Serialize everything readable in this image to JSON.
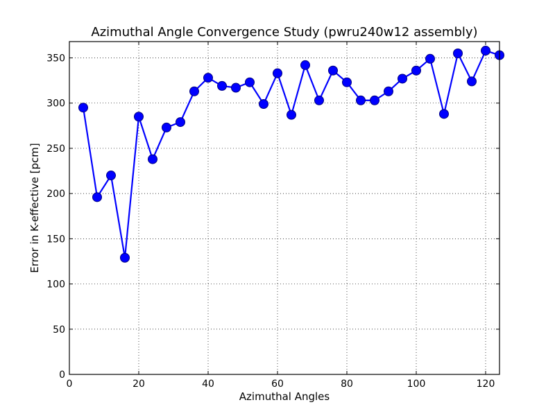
{
  "chart_data": {
    "type": "line",
    "title": "Azimuthal Angle Convergence Study (pwru240w12 assembly)",
    "xlabel": "Azimuthal Angles",
    "ylabel": "Error in K-effective [pcm]",
    "xlim": [
      0,
      124
    ],
    "ylim": [
      0,
      368
    ],
    "xticks": [
      0,
      20,
      40,
      60,
      80,
      100,
      120
    ],
    "yticks": [
      0,
      50,
      100,
      150,
      200,
      250,
      300,
      350
    ],
    "grid": true,
    "colors": {
      "line": "#0000ff",
      "marker_edge": "#000080",
      "marker_fill": "#0000ff"
    },
    "series": [
      {
        "x": [
          4,
          8,
          12,
          16,
          20,
          24,
          28,
          32,
          36,
          40,
          44,
          48,
          52,
          56,
          60,
          64,
          68,
          72,
          76,
          80,
          84,
          88,
          92,
          96,
          100,
          104,
          108,
          112,
          116,
          120,
          124
        ],
        "y": [
          295,
          196,
          220,
          129,
          285,
          238,
          273,
          279,
          313,
          328,
          319,
          317,
          323,
          299,
          333,
          287,
          342,
          303,
          336,
          323,
          303,
          303,
          313,
          327,
          336,
          349,
          288,
          355,
          324,
          358,
          353
        ]
      }
    ]
  }
}
